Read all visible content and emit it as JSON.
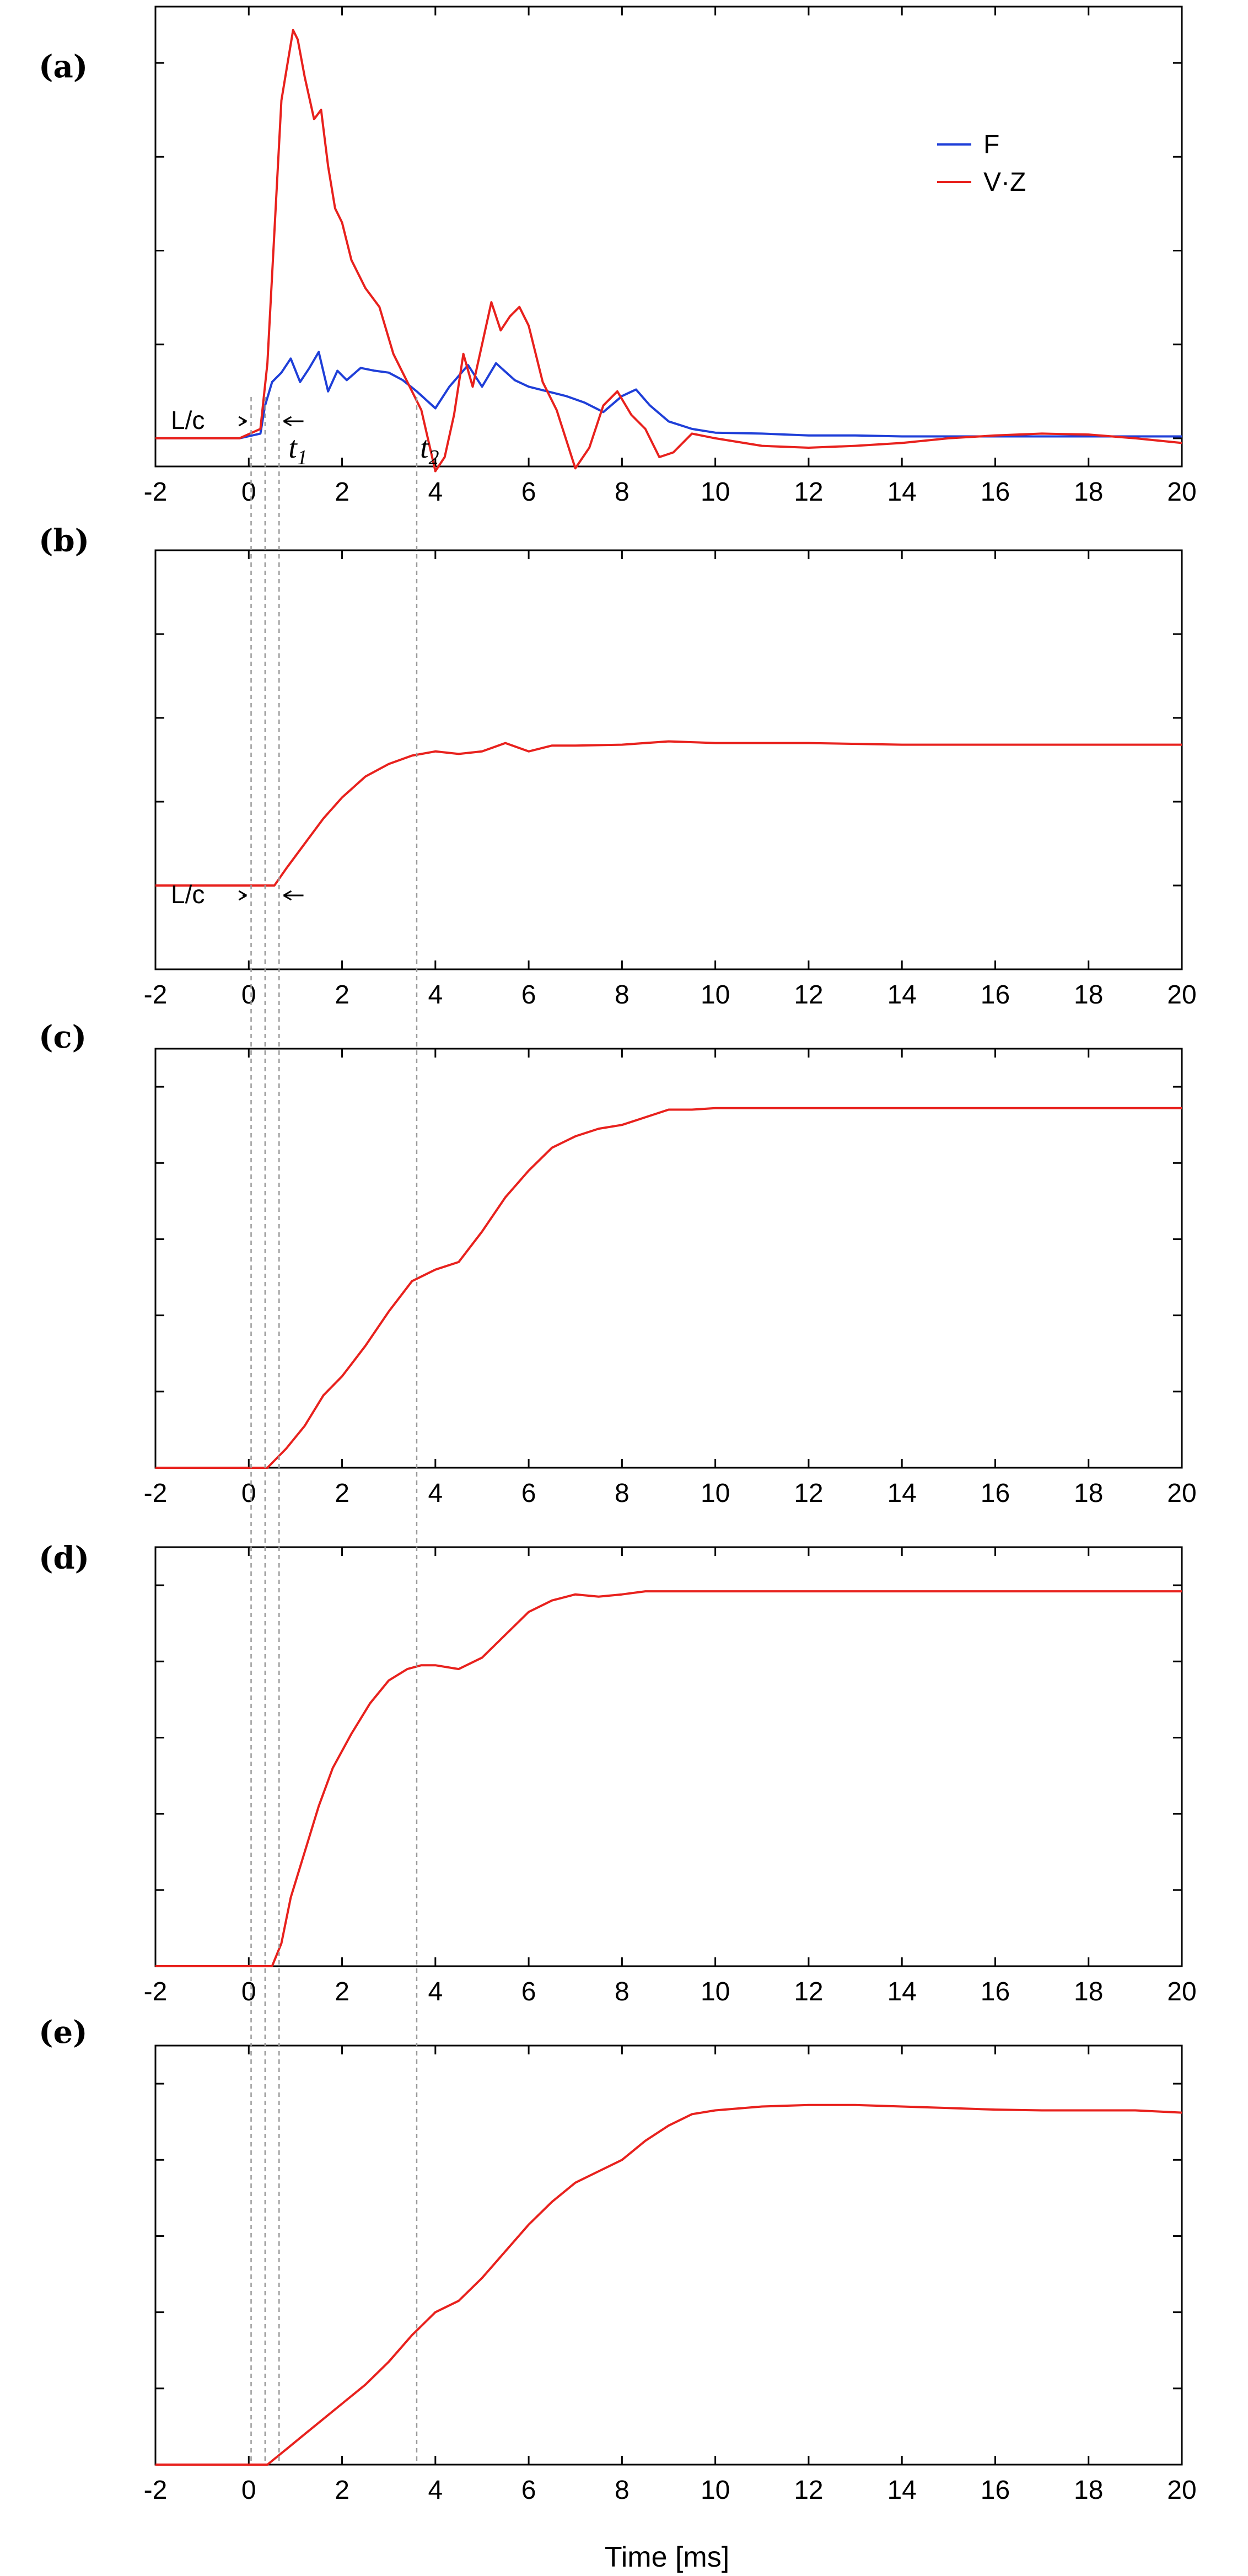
{
  "chart_data": [
    {
      "panel": "(a)",
      "type": "line",
      "xlim": [
        -2,
        20
      ],
      "ylim": [
        -0.3,
        4.6
      ],
      "xticks": [
        -2,
        0,
        2,
        4,
        6,
        8,
        10,
        12,
        14,
        16,
        18,
        20
      ],
      "yticks": [
        0,
        1,
        2,
        3,
        4
      ],
      "legend": "top-right",
      "series": [
        {
          "name": "F",
          "color": "#1f3fd8",
          "x": [
            -2,
            -0.2,
            0.25,
            0.35,
            0.5,
            0.7,
            0.9,
            1.1,
            1.3,
            1.5,
            1.7,
            1.9,
            2.1,
            2.4,
            2.7,
            3.0,
            3.3,
            3.6,
            4.0,
            4.3,
            4.7,
            5.0,
            5.3,
            5.7,
            6.0,
            6.4,
            6.8,
            7.2,
            7.6,
            8.0,
            8.3,
            8.6,
            9.0,
            9.5,
            10,
            11,
            12,
            13,
            14,
            15,
            16,
            17,
            18,
            19,
            20
          ],
          "y": [
            0,
            0,
            0.05,
            0.35,
            0.6,
            0.7,
            0.85,
            0.6,
            0.75,
            0.92,
            0.5,
            0.72,
            0.62,
            0.75,
            0.72,
            0.7,
            0.62,
            0.5,
            0.32,
            0.55,
            0.78,
            0.55,
            0.8,
            0.62,
            0.55,
            0.5,
            0.45,
            0.38,
            0.28,
            0.45,
            0.52,
            0.35,
            0.18,
            0.1,
            0.06,
            0.05,
            0.03,
            0.03,
            0.02,
            0.02,
            0.02,
            0.02,
            0.02,
            0.02,
            0.02
          ]
        },
        {
          "name": "V·Z",
          "color": "#e8211d",
          "x": [
            -2,
            -0.2,
            0.25,
            0.4,
            0.55,
            0.7,
            0.85,
            0.95,
            1.05,
            1.2,
            1.4,
            1.55,
            1.7,
            1.85,
            2.0,
            2.2,
            2.5,
            2.8,
            3.1,
            3.4,
            3.7,
            4.0,
            4.2,
            4.4,
            4.6,
            4.8,
            5.0,
            5.2,
            5.4,
            5.6,
            5.8,
            6.0,
            6.3,
            6.6,
            7.0,
            7.3,
            7.6,
            7.9,
            8.2,
            8.5,
            8.8,
            9.1,
            9.5,
            10,
            11,
            12,
            13,
            14,
            15,
            16,
            17,
            18,
            19,
            20
          ],
          "y": [
            0,
            0,
            0.1,
            0.8,
            2.2,
            3.6,
            4.05,
            4.35,
            4.25,
            3.85,
            3.4,
            3.5,
            2.9,
            2.45,
            2.3,
            1.9,
            1.6,
            1.4,
            0.9,
            0.6,
            0.3,
            -0.35,
            -0.2,
            0.25,
            0.9,
            0.55,
            1.0,
            1.45,
            1.15,
            1.3,
            1.4,
            1.2,
            0.6,
            0.3,
            -0.32,
            -0.1,
            0.35,
            0.5,
            0.25,
            0.1,
            -0.2,
            -0.15,
            0.05,
            0.0,
            -0.08,
            -0.1,
            -0.08,
            -0.05,
            0.0,
            0.03,
            0.05,
            0.04,
            0.0,
            -0.05
          ]
        }
      ],
      "annotations": {
        "lc": "L/c",
        "t1": "t",
        "t1_sub": "1",
        "t2": "t",
        "t2_sub": "2"
      }
    },
    {
      "panel": "(b)",
      "type": "line",
      "xlim": [
        -2,
        20
      ],
      "ylim": [
        -1,
        4
      ],
      "xticks": [
        -2,
        0,
        2,
        4,
        6,
        8,
        10,
        12,
        14,
        16,
        18,
        20
      ],
      "yticks": [
        0,
        1,
        2,
        3
      ],
      "series": [
        {
          "color": "#e8211d",
          "x": [
            -2,
            0.55,
            0.8,
            1.2,
            1.6,
            2.0,
            2.5,
            3.0,
            3.5,
            4.0,
            4.5,
            5.0,
            5.5,
            6.0,
            6.5,
            7.0,
            8.0,
            9.0,
            10,
            12,
            14,
            16,
            18,
            20
          ],
          "y": [
            0,
            0,
            0.2,
            0.5,
            0.8,
            1.05,
            1.3,
            1.45,
            1.55,
            1.6,
            1.57,
            1.6,
            1.7,
            1.6,
            1.67,
            1.67,
            1.68,
            1.72,
            1.7,
            1.7,
            1.68,
            1.68,
            1.68,
            1.68
          ]
        }
      ],
      "annotations": {
        "lc": "L/c"
      }
    },
    {
      "panel": "(c)",
      "type": "line",
      "xlim": [
        -2,
        20
      ],
      "ylim": [
        0,
        5.5
      ],
      "xticks": [
        -2,
        0,
        2,
        4,
        6,
        8,
        10,
        12,
        14,
        16,
        18,
        20
      ],
      "yticks": [
        1,
        2,
        3,
        4,
        5
      ],
      "series": [
        {
          "color": "#e8211d",
          "x": [
            -2,
            0.4,
            0.8,
            1.2,
            1.6,
            2.0,
            2.5,
            3.0,
            3.5,
            4.0,
            4.5,
            5.0,
            5.5,
            6.0,
            6.5,
            7.0,
            7.5,
            8.0,
            8.5,
            9.0,
            9.5,
            10,
            12,
            14,
            16,
            18,
            20
          ],
          "y": [
            0,
            0,
            0.25,
            0.55,
            0.95,
            1.2,
            1.6,
            2.05,
            2.45,
            2.6,
            2.7,
            3.1,
            3.55,
            3.9,
            4.2,
            4.35,
            4.45,
            4.5,
            4.6,
            4.7,
            4.7,
            4.72,
            4.72,
            4.72,
            4.72,
            4.72,
            4.72
          ]
        }
      ]
    },
    {
      "panel": "(d)",
      "type": "line",
      "xlim": [
        -2,
        20
      ],
      "ylim": [
        0,
        5.5
      ],
      "xticks": [
        -2,
        0,
        2,
        4,
        6,
        8,
        10,
        12,
        14,
        16,
        18,
        20
      ],
      "yticks": [
        1,
        2,
        3,
        4,
        5
      ],
      "series": [
        {
          "color": "#e8211d",
          "x": [
            -2,
            0.5,
            0.7,
            0.9,
            1.2,
            1.5,
            1.8,
            2.2,
            2.6,
            3.0,
            3.4,
            3.7,
            4.0,
            4.5,
            5.0,
            5.5,
            6.0,
            6.5,
            7.0,
            7.5,
            8.0,
            8.5,
            9.0,
            10,
            12,
            14,
            16,
            18,
            20
          ],
          "y": [
            0,
            0,
            0.3,
            0.9,
            1.5,
            2.1,
            2.6,
            3.05,
            3.45,
            3.75,
            3.9,
            3.95,
            3.95,
            3.9,
            4.05,
            4.35,
            4.65,
            4.8,
            4.88,
            4.85,
            4.88,
            4.92,
            4.92,
            4.92,
            4.92,
            4.92,
            4.92,
            4.92,
            4.92
          ]
        }
      ]
    },
    {
      "panel": "(e)",
      "type": "line",
      "xlim": [
        -2,
        20
      ],
      "ylim": [
        0,
        5.5
      ],
      "xticks": [
        -2,
        0,
        2,
        4,
        6,
        8,
        10,
        12,
        14,
        16,
        18,
        20
      ],
      "yticks": [
        1,
        2,
        3,
        4,
        5
      ],
      "series": [
        {
          "color": "#e8211d",
          "x": [
            -2,
            0.4,
            0.8,
            1.2,
            1.6,
            2.0,
            2.5,
            3.0,
            3.5,
            4.0,
            4.5,
            5.0,
            5.5,
            6.0,
            6.5,
            7.0,
            7.5,
            8.0,
            8.5,
            9.0,
            9.5,
            10,
            11,
            12,
            13,
            14,
            15,
            16,
            17,
            18,
            19,
            20
          ],
          "y": [
            0,
            0,
            0.2,
            0.4,
            0.6,
            0.8,
            1.05,
            1.35,
            1.7,
            2.0,
            2.15,
            2.45,
            2.8,
            3.15,
            3.45,
            3.7,
            3.85,
            4.0,
            4.25,
            4.45,
            4.6,
            4.65,
            4.7,
            4.72,
            4.72,
            4.7,
            4.68,
            4.66,
            4.65,
            4.65,
            4.65,
            4.62
          ]
        }
      ]
    }
  ],
  "panel_labels": [
    "(a)",
    "(b)",
    "(c)",
    "(d)",
    "(e)"
  ],
  "xlabel": "Time [ms]",
  "colors": {
    "F": "#1f3fd8",
    "VZ": "#e8211d",
    "guide": "#9a9a9a"
  }
}
